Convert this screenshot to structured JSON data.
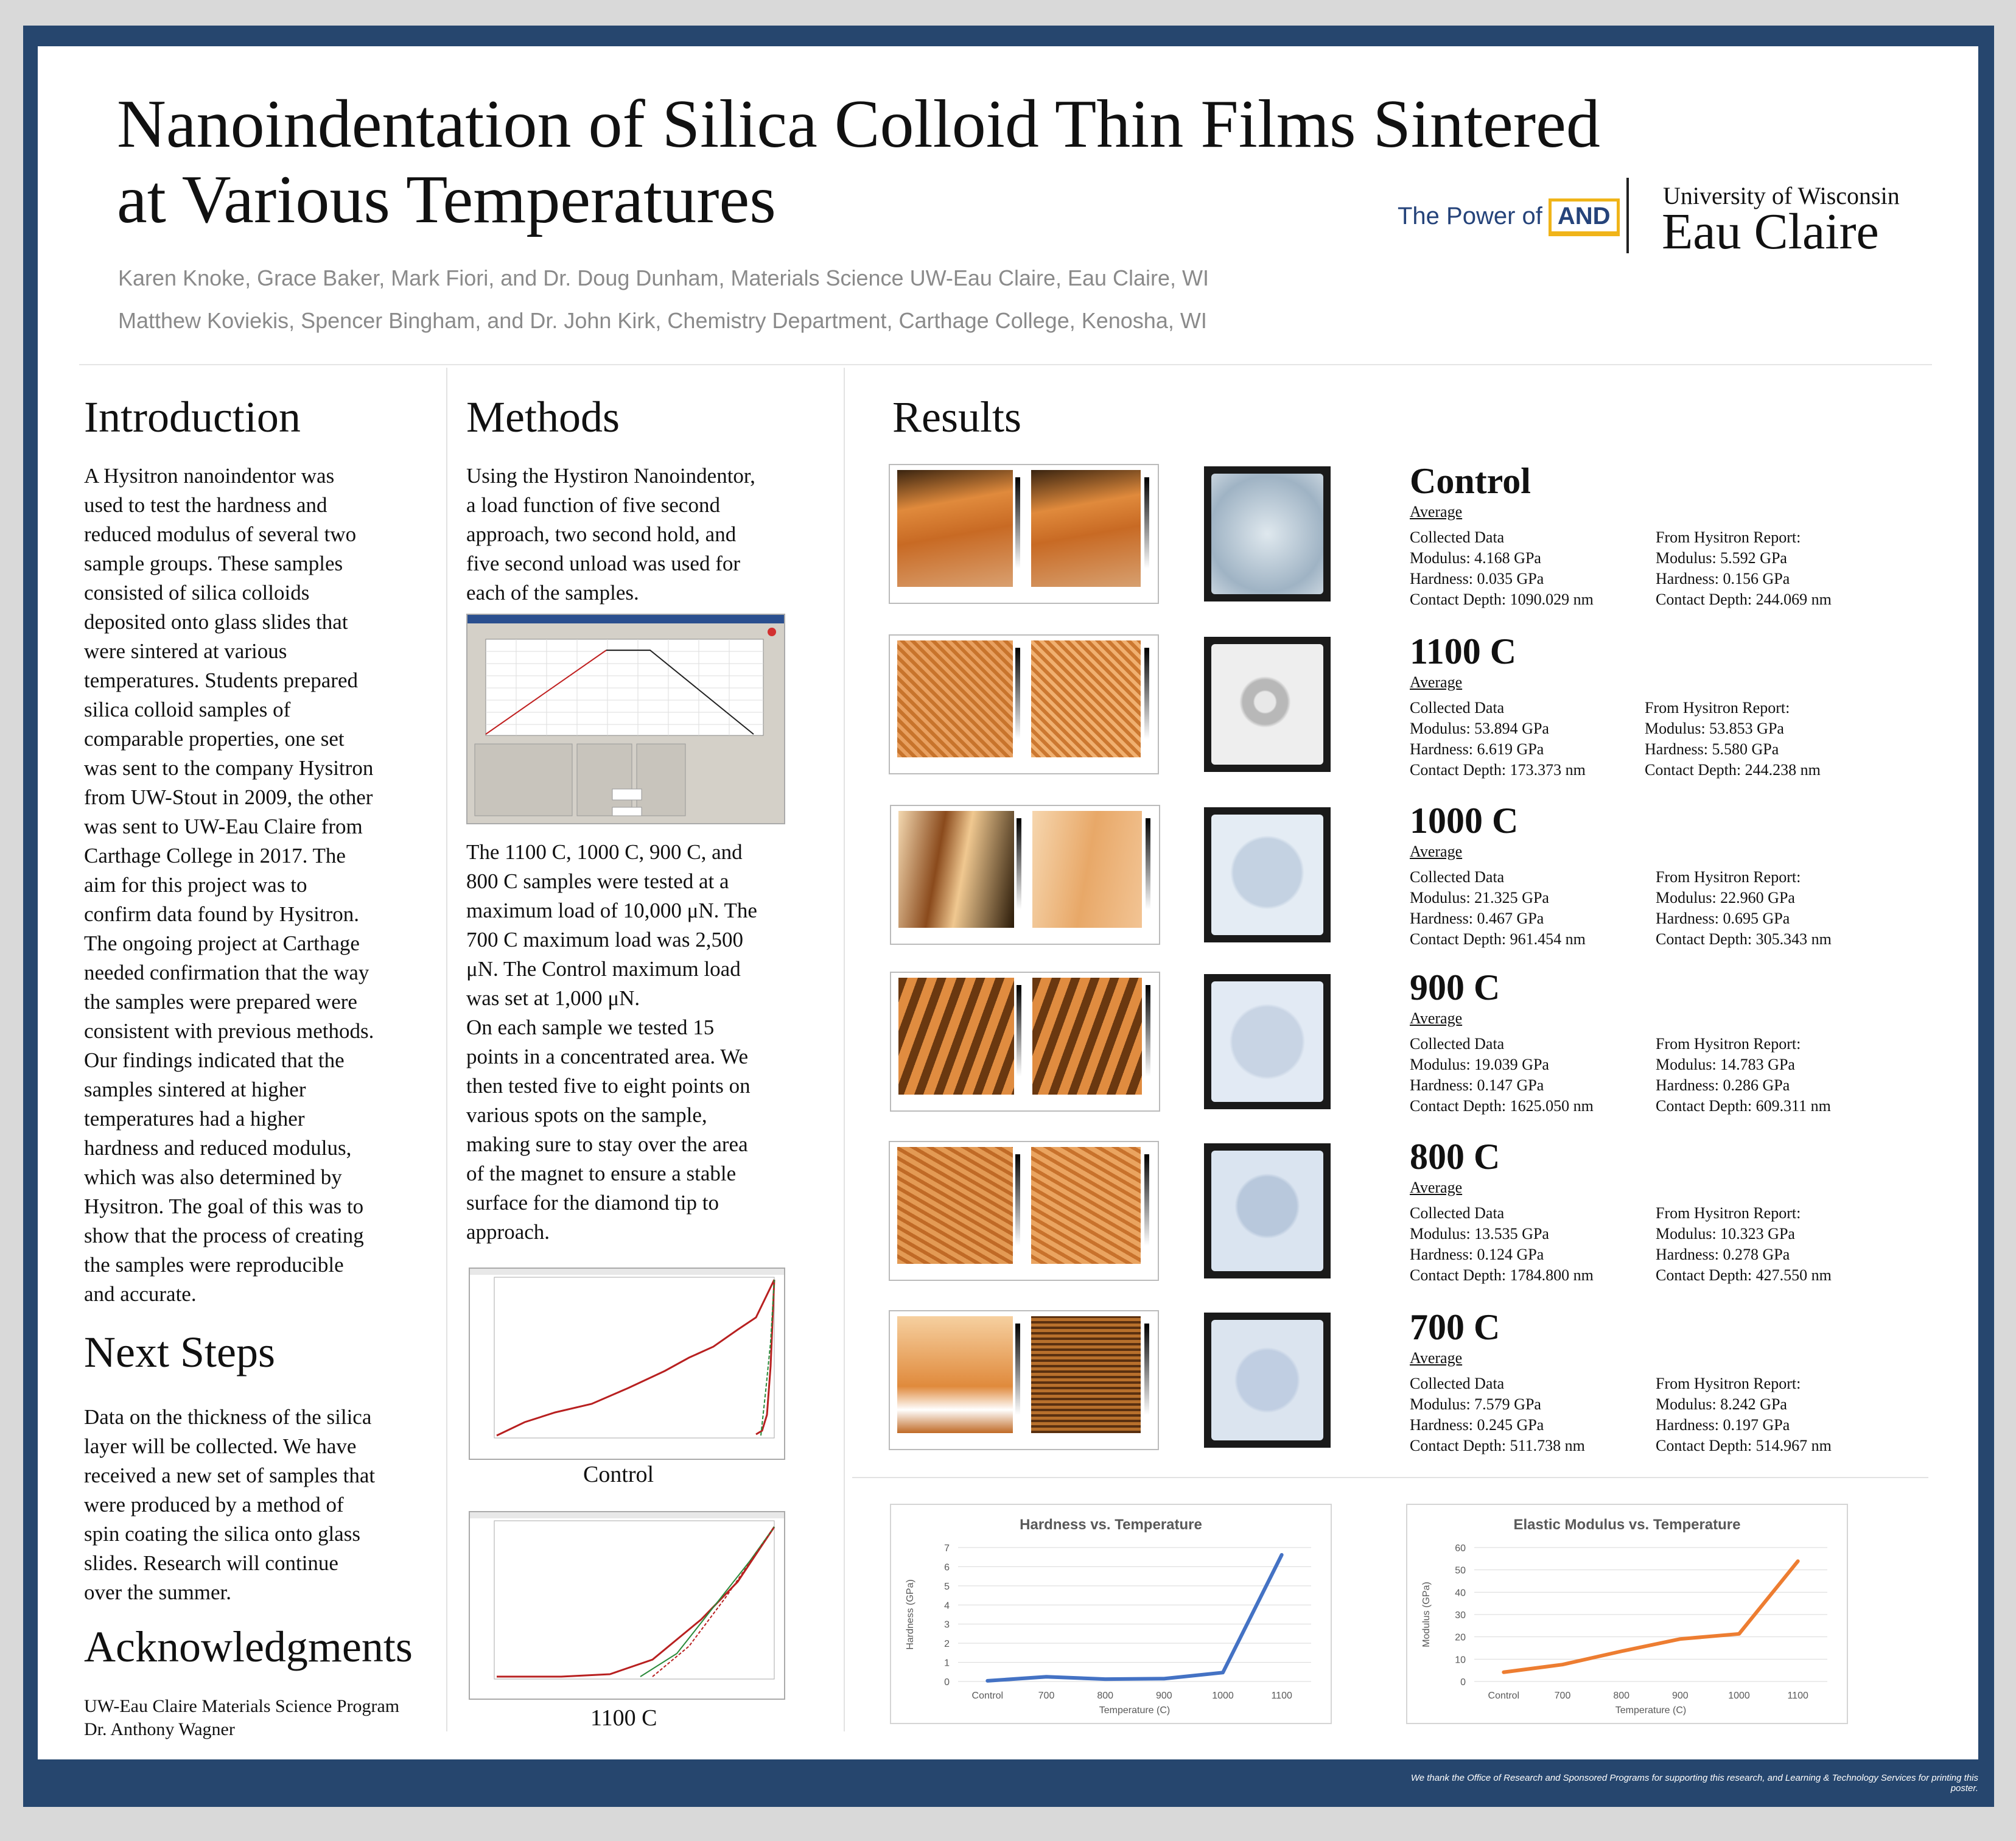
{
  "footer": "We thank the Office of Research and Sponsored Programs for supporting this research, and Learning & Technology Services for printing this poster.",
  "title": {
    "line1": "Nanoindentation of Silica Colloid Thin Films Sintered",
    "line2": "at Various Temperatures"
  },
  "authors": {
    "line1": "Karen Knoke, Grace Baker, Mark Fiori, and Dr. Doug Dunham, Materials Science UW-Eau Claire, Eau Claire, WI",
    "line2": "Matthew Koviekis, Spencer Bingham, and Dr. John Kirk, Chemistry Department, Carthage College, Kenosha, WI"
  },
  "logo": {
    "power_of": "The Power of",
    "and": "AND",
    "university_line1": "University of Wisconsin",
    "university_line2": "Eau Claire"
  },
  "introduction": {
    "heading": "Introduction",
    "lines": [
      "A Hysitron nanoindentor was",
      "used to test the hardness and",
      "reduced modulus of several two",
      "sample groups. These samples",
      "consisted of silica colloids",
      "deposited onto glass slides that",
      "were sintered at various",
      "temperatures. Students prepared",
      "silica colloid samples of",
      "comparable properties, one set",
      "was sent to the company Hysitron",
      "from UW-Stout in 2009, the other",
      "was sent to UW-Eau Claire from",
      "Carthage College in 2017. The",
      "aim for this project was to",
      "confirm data found by Hysitron.",
      "The ongoing project at Carthage",
      "needed confirmation that the way",
      "the samples were prepared were",
      "consistent with previous methods.",
      "Our findings indicated that the",
      "samples sintered at higher",
      "temperatures had a higher",
      "hardness and reduced modulus,",
      "which was also determined by",
      "Hysitron. The goal of this was to",
      "show that the process of creating",
      "the samples were reproducible",
      "and accurate."
    ]
  },
  "next_steps": {
    "heading": "Next Steps",
    "lines": [
      "Data on the thickness of the silica",
      "layer will be collected.  We have",
      "received a new set of samples that",
      "were produced by a method of",
      "spin coating the silica onto glass",
      "slides. Research will continue",
      "over the summer."
    ]
  },
  "acknowledgments": {
    "heading": "Acknowledgments",
    "lines": [
      "UW-Eau Claire Materials Science Program",
      "Dr. Anthony Wagner"
    ]
  },
  "methods": {
    "heading": "Methods",
    "para1": [
      "Using the Hystiron Nanoindentor,",
      "a load function of five second",
      "approach, two second hold, and",
      "five second unload was used for",
      "each of the samples."
    ],
    "para2": [
      "The 1100 C, 1000 C, 900 C, and",
      "800 C samples were tested at a",
      "maximum load of 10,000 μN. The",
      "700 C maximum load was 2,500",
      "μN. The Control maximum load",
      "was set at 1,000 μN.",
      "On each sample we tested 15",
      "points in a concentrated area. We",
      "then tested five to eight points on",
      "various spots on the sample,",
      "making sure to stay over the area",
      "of the magnet to ensure a stable",
      "surface for the diamond tip to",
      "approach."
    ],
    "caption_control": "Control",
    "caption_1100": "1100 C"
  },
  "results": {
    "heading": "Results",
    "average_label": "Average",
    "collected_label": "Collected Data",
    "report_label": "From Hysitron Report:",
    "samples": [
      {
        "name": "Control",
        "c_mod": "Modulus: 4.168 GPa",
        "c_hard": "Hardness: 0.035 GPa",
        "c_depth": "Contact Depth: 1090.029 nm",
        "r_mod": "Modulus: 5.592 GPa",
        "r_hard": "Hardness: 0.156 GPa",
        "r_depth": "Contact Depth: 244.069 nm"
      },
      {
        "name": "1100 C",
        "c_mod": "Modulus: 53.894 GPa",
        "c_hard": "Hardness: 6.619 GPa",
        "c_depth": "Contact Depth: 173.373 nm",
        "r_mod": "Modulus: 53.853 GPa",
        "r_hard": "Hardness: 5.580 GPa",
        "r_depth": "Contact Depth: 244.238 nm"
      },
      {
        "name": "1000 C",
        "c_mod": "Modulus: 21.325 GPa",
        "c_hard": "Hardness: 0.467 GPa",
        "c_depth": "Contact Depth: 961.454 nm",
        "r_mod": "Modulus: 22.960 GPa",
        "r_hard": "Hardness: 0.695 GPa",
        "r_depth": "Contact Depth: 305.343 nm"
      },
      {
        "name": "900 C",
        "c_mod": "Modulus: 19.039 GPa",
        "c_hard": "Hardness: 0.147 GPa",
        "c_depth": "Contact Depth: 1625.050 nm",
        "r_mod": "Modulus: 14.783 GPa",
        "r_hard": "Hardness: 0.286 GPa",
        "r_depth": "Contact Depth: 609.311 nm"
      },
      {
        "name": "800 C",
        "c_mod": "Modulus: 13.535 GPa",
        "c_hard": "Hardness: 0.124 GPa",
        "c_depth": "Contact Depth: 1784.800 nm",
        "r_mod": "Modulus: 10.323 GPa",
        "r_hard": "Hardness: 0.278 GPa",
        "r_depth": "Contact Depth: 427.550 nm"
      },
      {
        "name": "700 C",
        "c_mod": "Modulus: 7.579 GPa",
        "c_hard": "Hardness: 0.245 GPa",
        "c_depth": "Contact Depth: 511.738 nm",
        "r_mod": "Modulus: 8.242 GPa",
        "r_hard": "Hardness: 0.197 GPa",
        "r_depth": "Contact Depth: 514.967 nm"
      }
    ]
  },
  "colors": {
    "frame": "#26466e",
    "hardness_line": "#4472c4",
    "modulus_line": "#ed7d31",
    "afm_orange": "#d9782c"
  },
  "chart_data": [
    {
      "type": "line",
      "title": "Hardness vs. Temperature",
      "xlabel": "Temperature (C)",
      "ylabel": "Hardness (GPa)",
      "categories": [
        "Control",
        "700",
        "800",
        "900",
        "1000",
        "1100"
      ],
      "values": [
        0.035,
        0.245,
        0.124,
        0.147,
        0.467,
        6.619
      ],
      "ylim": [
        0,
        7
      ],
      "yticks": [
        0,
        1,
        2,
        3,
        4,
        5,
        6,
        7
      ],
      "grid": true,
      "color": "#4472c4"
    },
    {
      "type": "line",
      "title": "Elastic Modulus vs. Temperature",
      "xlabel": "Temperature (C)",
      "ylabel": "Modulus (GPa)",
      "categories": [
        "Control",
        "700",
        "800",
        "900",
        "1000",
        "1100"
      ],
      "values": [
        4.168,
        7.579,
        13.535,
        19.039,
        21.325,
        53.894
      ],
      "ylim": [
        0,
        60
      ],
      "yticks": [
        0,
        10,
        20,
        30,
        40,
        50,
        60
      ],
      "grid": true,
      "color": "#ed7d31"
    }
  ]
}
